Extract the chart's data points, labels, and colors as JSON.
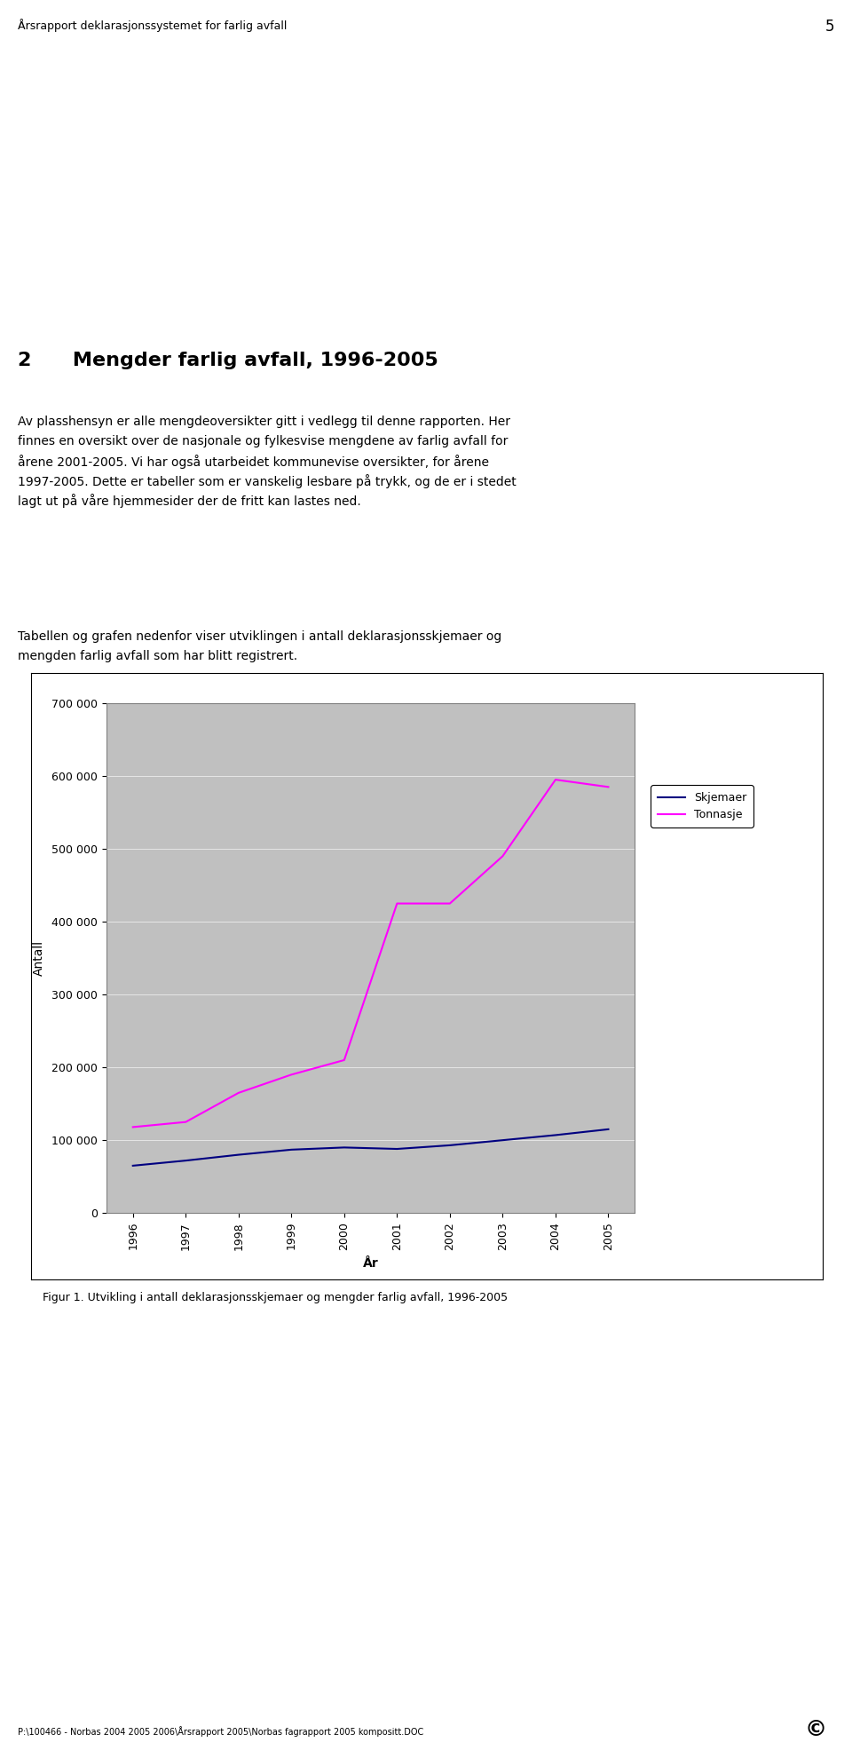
{
  "header_text": "Årsrapport deklarasjonssystemet for farlig avfall",
  "header_page": "5",
  "section_title": "2      Mengder farlig avfall, 1996-2005",
  "body_para1": [
    "Av plasshensyn er alle mengdeoversikter gitt i vedlegg til denne rapporten. Her",
    "finnes en oversikt over de nasjonale og fylkesvise mengdene av farlig avfall for",
    "årene 2001-2005. Vi har også utarbeidet kommunevise oversikter, for årene",
    "1997-2005. Dette er tabeller som er vanskelig lesbare på trykk, og de er i stedet",
    "lagt ut på våre hjemmesider der de fritt kan lastes ned."
  ],
  "body_para2": [
    "Tabellen og grafen nedenfor viser utviklingen i antall deklarasjonsskjemaer og",
    "mengden farlig avfall som har blitt registrert."
  ],
  "caption": "Figur 1. Utvikling i antall deklarasjonsskjemaer og mengder farlig avfall, 1996-2005",
  "footer_text": "P:\\100466 - Norbas 2004 2005 2006\\Årsrapport 2005\\Norbas fagrapport 2005 kompositt.DOC",
  "years": [
    1996,
    1997,
    1998,
    1999,
    2000,
    2001,
    2002,
    2003,
    2004,
    2005
  ],
  "skjemaer": [
    65000,
    72000,
    80000,
    87000,
    90000,
    88000,
    93000,
    100000,
    107000,
    115000
  ],
  "tonnasje": [
    118000,
    125000,
    165000,
    190000,
    210000,
    425000,
    425000,
    490000,
    595000,
    585000
  ],
  "ylim": [
    0,
    700000
  ],
  "yticks": [
    0,
    100000,
    200000,
    300000,
    400000,
    500000,
    600000,
    700000
  ],
  "ylabel": "Antall",
  "xlabel": "År",
  "legend_skjemaer": "Skjemaer",
  "legend_tonnasje": "Tonnasje",
  "line_color_skjemaer": "#000080",
  "line_color_tonnasje": "#FF00FF",
  "plot_bg_color": "#C0C0C0",
  "background_color": "#FFFFFF",
  "fig_width": 9.6,
  "fig_height": 19.8,
  "dpi": 100
}
